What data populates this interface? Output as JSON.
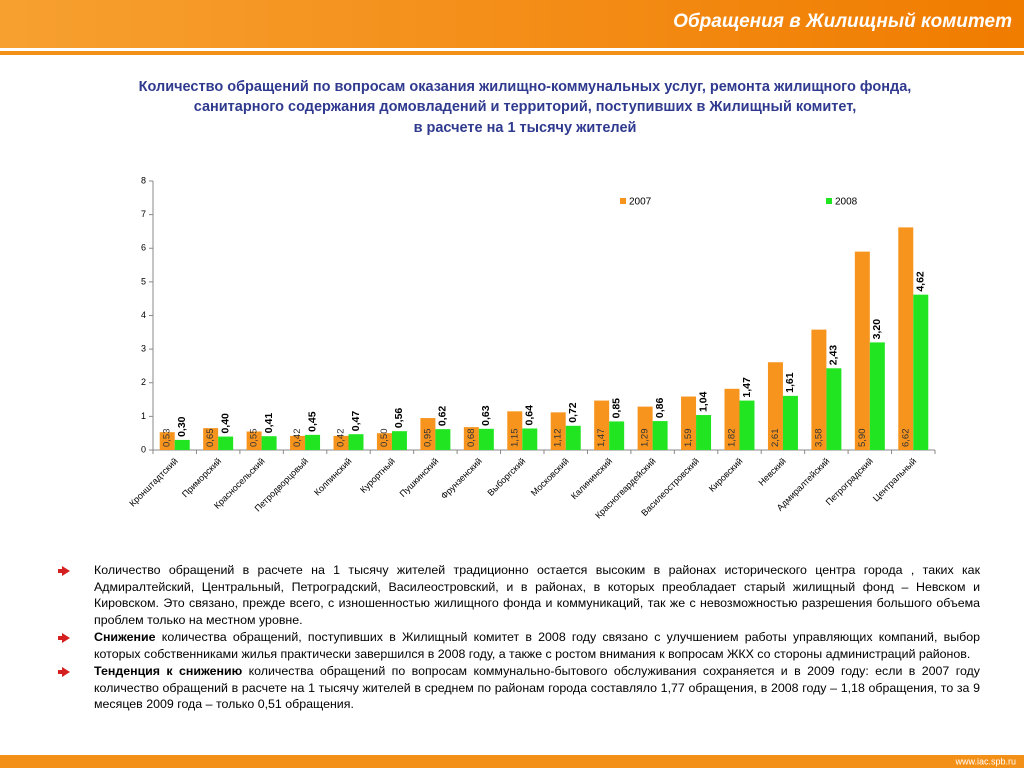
{
  "header": {
    "title": "Обращения в Жилищный комитет"
  },
  "chart_data": {
    "type": "bar",
    "title": [
      "Количество обращений по вопросам оказания жилищно-коммунальных услуг, ремонта жилищного фонда,",
      "санитарного содержания домовладений и территорий, поступивших в Жилищный комитет,",
      "в расчете на 1 тысячу жителей"
    ],
    "categories": [
      "Кронштадтский",
      "Приморский",
      "Красносельский",
      "Петродворцовый",
      "Колпинский",
      "Курортный",
      "Пушкинский",
      "Фрунзенский",
      "Выборгский",
      "Московский",
      "Калининский",
      "Красногвардейский",
      "Василеостровский",
      "Кировский",
      "Невский",
      "Адмиралтейский",
      "Петроградский",
      "Центральный"
    ],
    "series": [
      {
        "name": "2007",
        "color": "#f7941d",
        "values": [
          0.53,
          0.65,
          0.55,
          0.42,
          0.42,
          0.5,
          0.95,
          0.68,
          1.15,
          1.12,
          1.47,
          1.29,
          1.59,
          1.82,
          2.61,
          3.58,
          5.9,
          6.62
        ],
        "value_labels": [
          "0,53",
          "0,65",
          "0,55",
          "0,42",
          "0,42",
          "0,50",
          "0,95",
          "0,68",
          "1,15",
          "1,12",
          "1,47",
          "1,29",
          "1,59",
          "1,82",
          "2,61",
          "3,58",
          "5,90",
          "6,62"
        ]
      },
      {
        "name": "2008",
        "color": "#22e522",
        "values": [
          0.3,
          0.4,
          0.41,
          0.45,
          0.47,
          0.56,
          0.62,
          0.63,
          0.64,
          0.72,
          0.85,
          0.86,
          1.04,
          1.47,
          1.61,
          2.43,
          3.2,
          4.62
        ],
        "value_labels": [
          "0,30",
          "0,40",
          "0,41",
          "0,45",
          "0,47",
          "0,56",
          "0,62",
          "0,63",
          "0,64",
          "0,72",
          "0,85",
          "0,86",
          "1,04",
          "1,47",
          "1,61",
          "2,43",
          "3,20",
          "4,62"
        ]
      }
    ],
    "ylim": [
      0,
      8
    ],
    "yticks": [
      0,
      1,
      2,
      3,
      4,
      5,
      6,
      7,
      8
    ],
    "grid": false
  },
  "notes": [
    {
      "text": "Количество обращений в расчете на 1 тысячу жителей традиционно остается высоким в районах исторического центра города , таких как Адмиралтейский, Центральный, Петроградский, Василеостровский, и в районах, в которых преобладает старый жилищный фонд – Невском и Кировском. Это связано, прежде всего, с изношенностью жилищного фонда и коммуникаций, так же с невозможностью разрешения большого объема проблем только на местном уровне."
    },
    {
      "bold": "Снижение",
      "text": " количества обращений, поступивших в Жилищный комитет в 2008 году связано с улучшением работы управляющих компаний, выбор которых собственниками жилья практически завершился в 2008 году, а также с ростом внимания к вопросам ЖКХ со стороны администраций районов."
    },
    {
      "bold": "Тенденция к снижению",
      "text": " количества обращений по вопросам коммунально-бытового обслуживания сохраняется и в 2009 году:  если в 2007 году количество обращений в расчете на 1 тысячу жителей в среднем по районам города составляло 1,77 обращения, в 2008 году – 1,18 обращения, то за 9 месяцев 2009 года – только 0,51 обращения."
    }
  ],
  "footer": {
    "url": "www.iac.spb.ru"
  }
}
